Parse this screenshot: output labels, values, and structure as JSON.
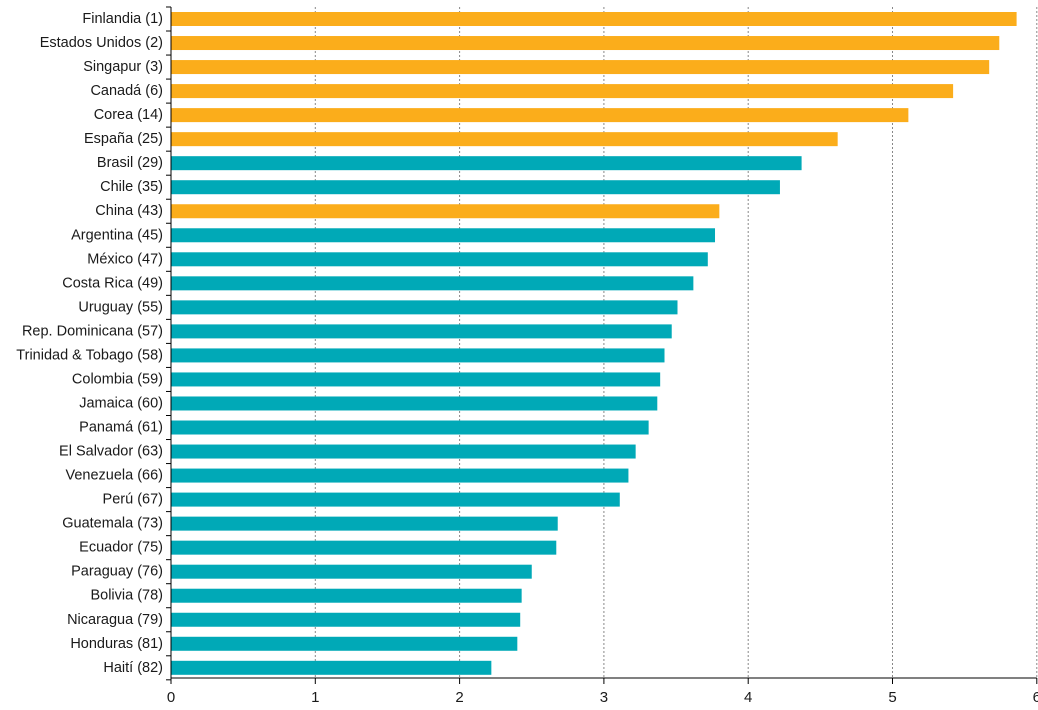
{
  "chart_data": {
    "type": "bar",
    "orientation": "horizontal",
    "title": "",
    "xlabel": "",
    "ylabel": "",
    "xlim": [
      0,
      6
    ],
    "xticks": [
      "0",
      "1",
      "2",
      "3",
      "4",
      "5",
      "6"
    ],
    "grid": true,
    "legend": "none",
    "colors": {
      "highlight": "#FBAD1B",
      "latin_america": "#00A9B7",
      "gridline": "#888888",
      "axis": "#000000"
    },
    "categories": [
      "Finlandia (1)",
      "Estados Unidos (2)",
      "Singapur (3)",
      "Canadá (6)",
      "Corea (14)",
      "España (25)",
      "Brasil (29)",
      "Chile (35)",
      "China (43)",
      "Argentina (45)",
      "México (47)",
      "Costa Rica (49)",
      "Uruguay (55)",
      "Rep. Dominicana (57)",
      "Trinidad & Tobago (58)",
      "Colombia (59)",
      "Jamaica (60)",
      "Panamá (61)",
      "El Salvador (63)",
      "Venezuela (66)",
      "Perú (67)",
      "Guatemala (73)",
      "Ecuador (75)",
      "Paraguay (76)",
      "Bolivia (78)",
      "Nicaragua (79)",
      "Honduras (81)",
      "Haití (82)"
    ],
    "values": [
      5.86,
      5.74,
      5.67,
      5.42,
      5.11,
      4.62,
      4.37,
      4.22,
      3.8,
      3.77,
      3.72,
      3.62,
      3.51,
      3.47,
      3.42,
      3.39,
      3.37,
      3.31,
      3.22,
      3.17,
      3.11,
      2.68,
      2.67,
      2.5,
      2.43,
      2.42,
      2.4,
      2.22
    ],
    "groups": [
      "highlight",
      "highlight",
      "highlight",
      "highlight",
      "highlight",
      "highlight",
      "latin_america",
      "latin_america",
      "highlight",
      "latin_america",
      "latin_america",
      "latin_america",
      "latin_america",
      "latin_america",
      "latin_america",
      "latin_america",
      "latin_america",
      "latin_america",
      "latin_america",
      "latin_america",
      "latin_america",
      "latin_america",
      "latin_america",
      "latin_america",
      "latin_america",
      "latin_america",
      "latin_america",
      "latin_america"
    ]
  }
}
